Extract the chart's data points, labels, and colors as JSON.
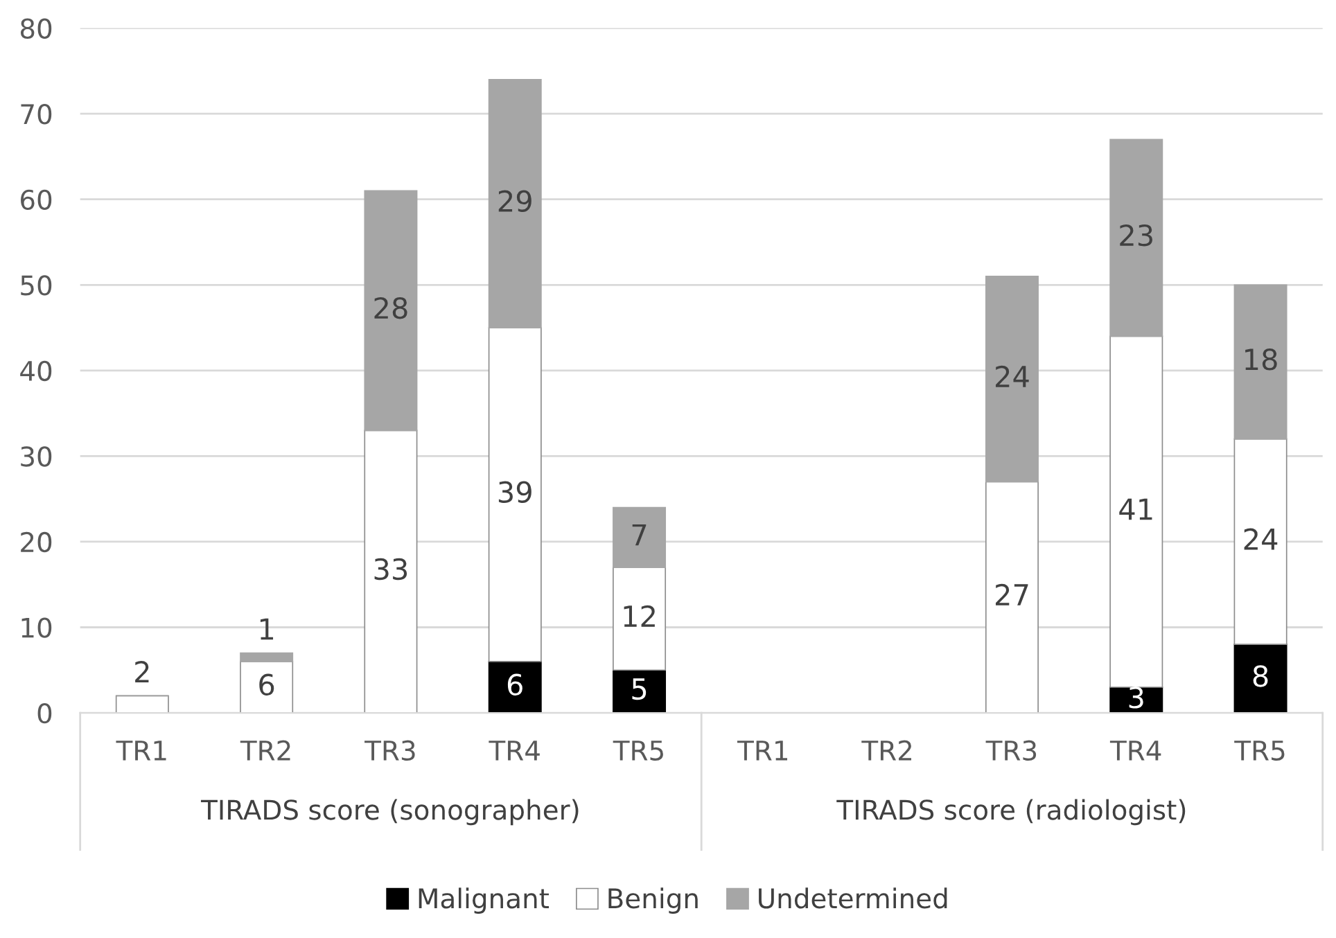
{
  "chart_data": {
    "type": "bar",
    "stacked": true,
    "categories": [
      "TR1",
      "TR2",
      "TR3",
      "TR4",
      "TR5",
      "TR1",
      "TR2",
      "TR3",
      "TR4",
      "TR5"
    ],
    "series": [
      {
        "name": "Malignant",
        "color": "#000000",
        "values": [
          0,
          0,
          0,
          6,
          5,
          0,
          0,
          0,
          3,
          8
        ],
        "value_labels": [
          null,
          null,
          null,
          "6",
          "5",
          null,
          null,
          null,
          "3",
          "8"
        ]
      },
      {
        "name": "Benign",
        "color": "#ffffff",
        "values": [
          2,
          6,
          33,
          39,
          12,
          0,
          0,
          27,
          41,
          24
        ],
        "value_labels": [
          "2",
          "6",
          "33",
          "39",
          "12",
          null,
          null,
          "27",
          "41",
          "24"
        ]
      },
      {
        "name": "Undetermined",
        "color": "#a6a6a6",
        "values": [
          0,
          1,
          28,
          29,
          7,
          0,
          0,
          24,
          23,
          18
        ],
        "value_labels": [
          null,
          "1",
          "28",
          "29",
          "7",
          null,
          null,
          "24",
          "23",
          "18"
        ]
      }
    ],
    "ylim": [
      0,
      80
    ],
    "yticks": [
      0,
      10,
      20,
      30,
      40,
      50,
      60,
      70,
      80
    ],
    "grid": "y",
    "legend": "bottom",
    "annotations": [
      "TIRADS score (sonographer)",
      "TIRADS score (radiologist)"
    ]
  }
}
